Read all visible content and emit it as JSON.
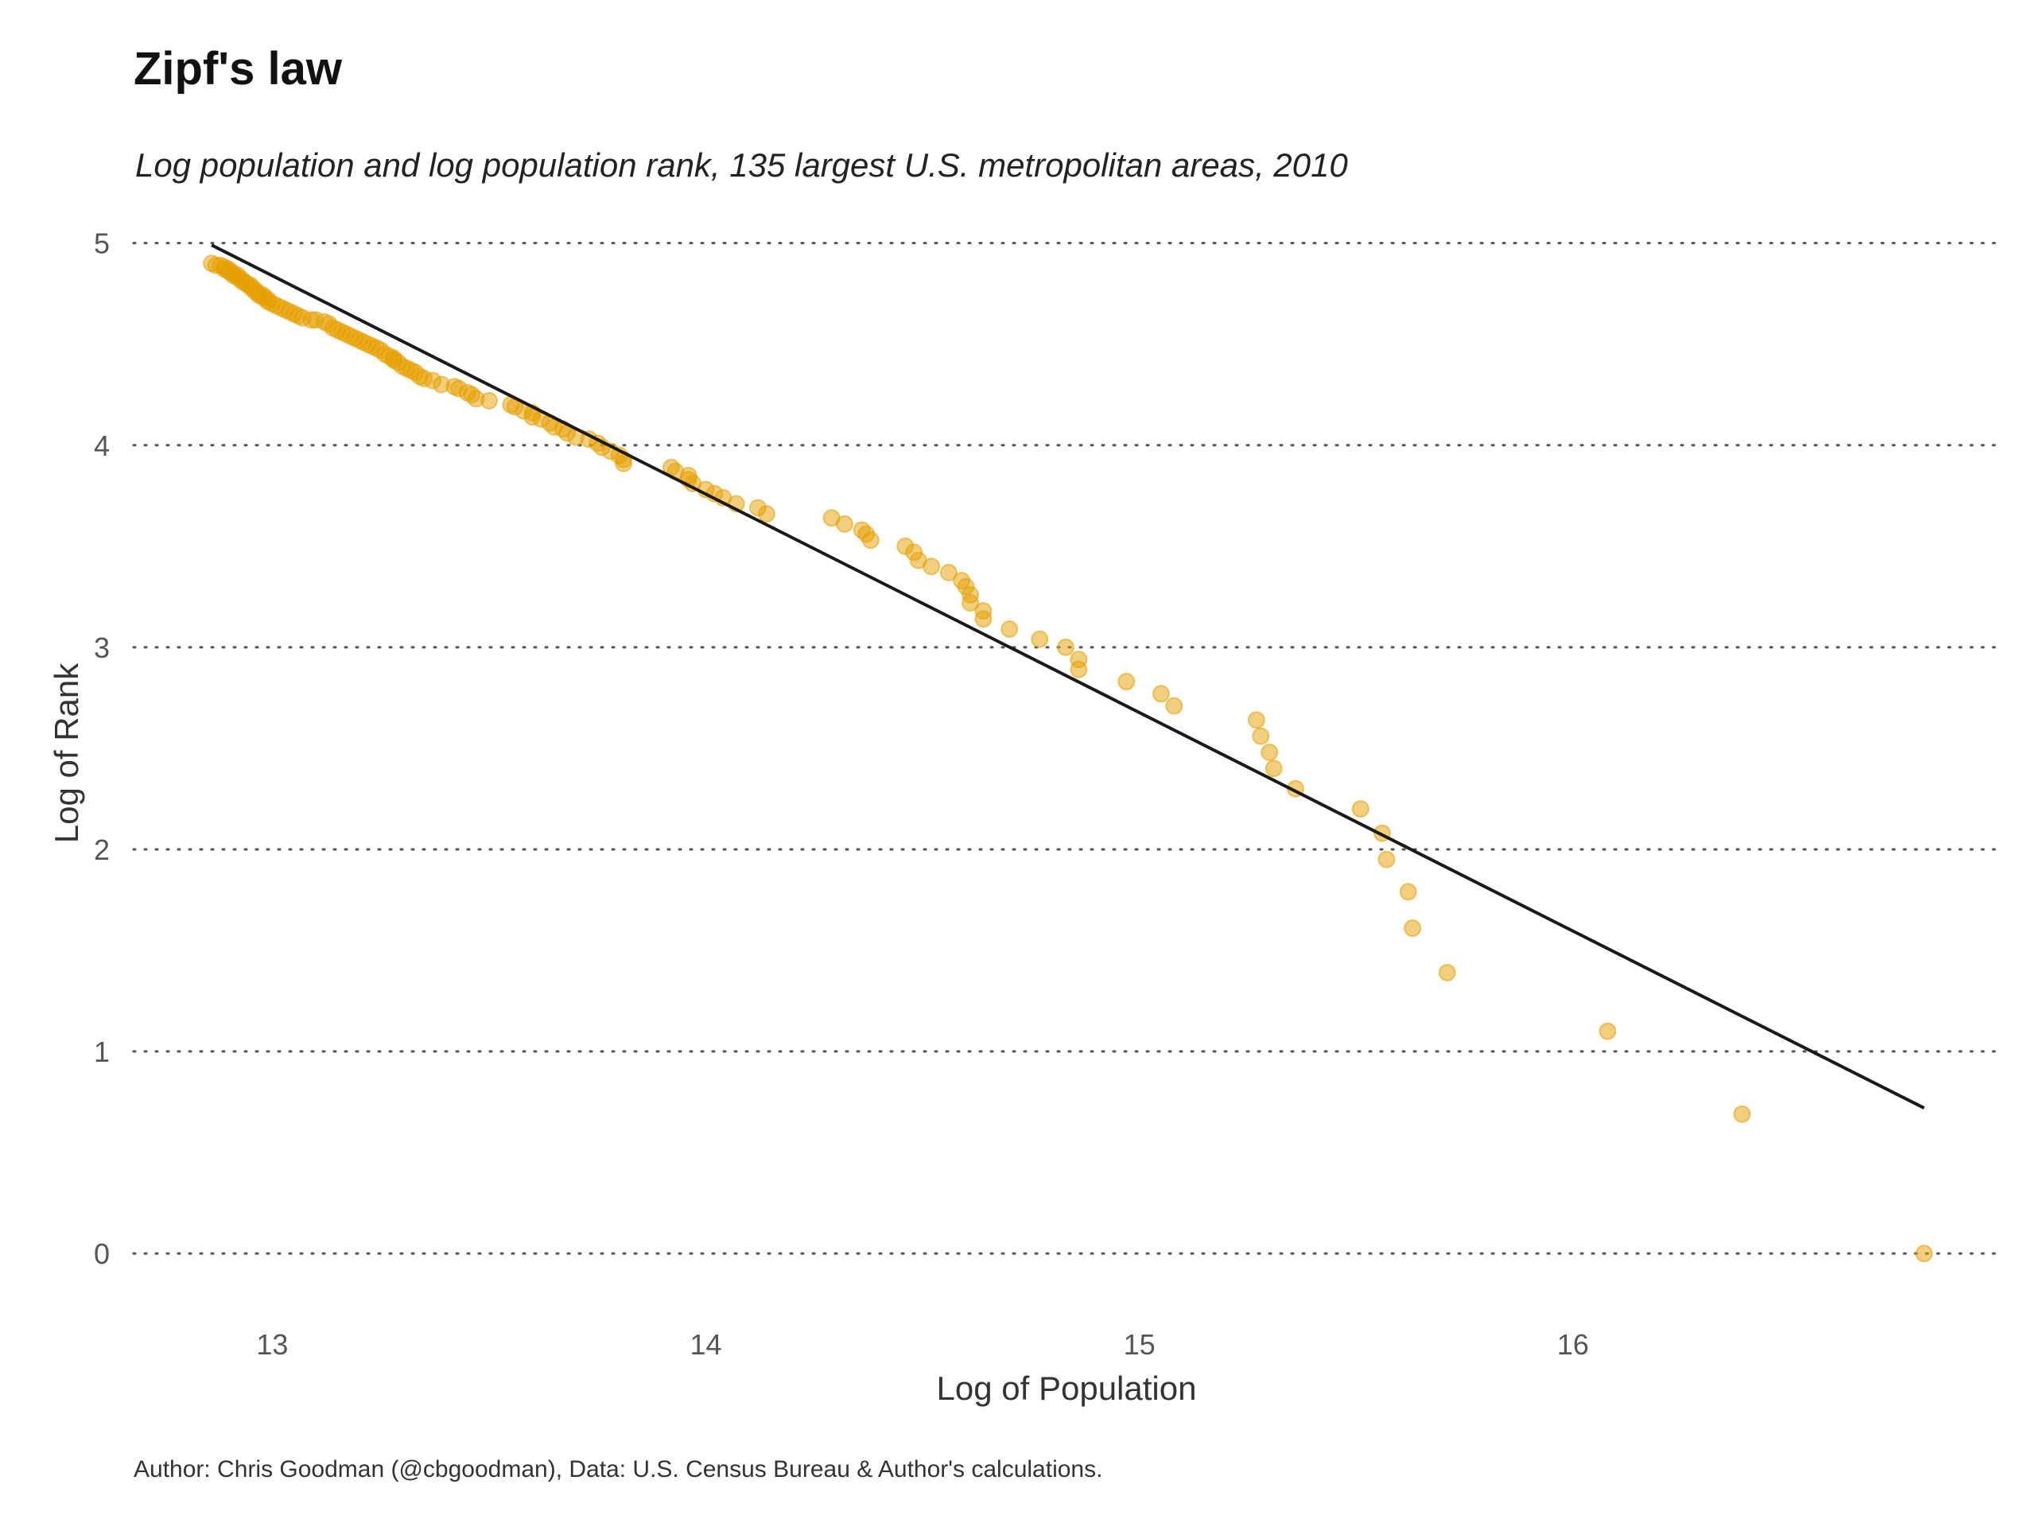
{
  "chart_data": {
    "type": "scatter",
    "title": "Zipf's law",
    "subtitle": "Log population and log population rank, 135 largest U.S. metropolitan areas, 2010",
    "xlabel": "Log of Population",
    "ylabel": "Log of Rank",
    "caption": "Author: Chris Goodman (@cbgoodman), Data: U.S. Census Bureau & Author's calculations.",
    "xlim": [
      12.68,
      16.98
    ],
    "ylim": [
      -0.33,
      5.16
    ],
    "xticks": [
      13,
      14,
      15,
      16
    ],
    "xtick_labels": [
      "13",
      "14",
      "15",
      "16"
    ],
    "yticks": [
      0,
      1,
      2,
      3,
      4,
      5
    ],
    "ytick_labels": [
      "0",
      "1",
      "2",
      "3",
      "4",
      "5"
    ],
    "grid": "horizontal dotted",
    "legend": "none",
    "point_color": "#E69F00",
    "line_color": "#1a1a1a",
    "series": [
      {
        "kind": "points",
        "x": [
          16.81,
          16.39,
          16.08,
          15.71,
          15.63,
          15.62,
          15.57,
          15.56,
          15.51,
          15.36,
          15.31,
          15.3,
          15.28,
          15.27,
          15.08,
          15.05,
          14.97,
          14.86,
          14.86,
          14.83,
          14.77,
          14.7,
          14.64,
          14.64,
          14.61,
          14.61,
          14.6,
          14.59,
          14.56,
          14.52,
          14.49,
          14.48,
          14.46,
          14.38,
          14.37,
          14.36,
          14.32,
          14.29,
          14.14,
          14.12,
          14.07,
          14.04,
          14.02,
          14.0,
          13.97,
          13.96,
          13.96,
          13.93,
          13.92,
          13.81,
          13.81,
          13.8,
          13.78,
          13.76,
          13.75,
          13.73,
          13.7,
          13.68,
          13.67,
          13.65,
          13.64,
          13.62,
          13.6,
          13.6,
          13.58,
          13.56,
          13.55,
          13.5,
          13.47,
          13.46,
          13.45,
          13.43,
          13.42,
          13.39,
          13.37,
          13.35,
          13.34,
          13.33,
          13.32,
          13.31,
          13.3,
          13.29,
          13.28,
          13.28,
          13.27,
          13.26,
          13.25,
          13.24,
          13.23,
          13.22,
          13.21,
          13.2,
          13.19,
          13.18,
          13.17,
          13.16,
          13.15,
          13.14,
          13.13,
          13.12,
          13.1,
          13.09,
          13.07,
          13.06,
          13.05,
          13.04,
          13.03,
          13.02,
          13.01,
          13.0,
          12.99,
          12.99,
          12.98,
          12.98,
          12.97,
          12.97,
          12.96,
          12.96,
          12.95,
          12.95,
          12.94,
          12.94,
          12.93,
          12.93,
          12.92,
          12.92,
          12.91,
          12.91,
          12.9,
          12.9,
          12.89,
          12.89,
          12.88,
          12.87,
          12.86
        ],
        "y": [
          0.0,
          0.69,
          1.1,
          1.39,
          1.61,
          1.79,
          1.95,
          2.08,
          2.2,
          2.3,
          2.4,
          2.48,
          2.56,
          2.64,
          2.71,
          2.77,
          2.83,
          2.89,
          2.94,
          3.0,
          3.04,
          3.09,
          3.14,
          3.18,
          3.22,
          3.26,
          3.3,
          3.33,
          3.37,
          3.4,
          3.43,
          3.47,
          3.5,
          3.53,
          3.56,
          3.58,
          3.61,
          3.64,
          3.66,
          3.69,
          3.71,
          3.74,
          3.76,
          3.78,
          3.81,
          3.83,
          3.85,
          3.87,
          3.89,
          3.91,
          3.93,
          3.95,
          3.97,
          3.99,
          4.01,
          4.03,
          4.04,
          4.06,
          4.08,
          4.09,
          4.11,
          4.13,
          4.14,
          4.16,
          4.17,
          4.19,
          4.2,
          4.22,
          4.23,
          4.25,
          4.26,
          4.28,
          4.29,
          4.3,
          4.32,
          4.33,
          4.34,
          4.36,
          4.37,
          4.38,
          4.39,
          4.41,
          4.42,
          4.43,
          4.44,
          4.45,
          4.47,
          4.48,
          4.49,
          4.5,
          4.51,
          4.52,
          4.53,
          4.54,
          4.55,
          4.56,
          4.57,
          4.58,
          4.6,
          4.61,
          4.62,
          4.62,
          4.63,
          4.64,
          4.65,
          4.66,
          4.67,
          4.68,
          4.69,
          4.7,
          4.71,
          4.72,
          4.73,
          4.74,
          4.74,
          4.75,
          4.76,
          4.77,
          4.78,
          4.79,
          4.8,
          4.8,
          4.81,
          4.82,
          4.83,
          4.84,
          4.84,
          4.85,
          4.86,
          4.87,
          4.87,
          4.88,
          4.89,
          4.89,
          4.9
        ]
      },
      {
        "kind": "fit-line",
        "x": [
          12.86,
          16.81
        ],
        "y": [
          4.99,
          0.72
        ]
      }
    ]
  }
}
